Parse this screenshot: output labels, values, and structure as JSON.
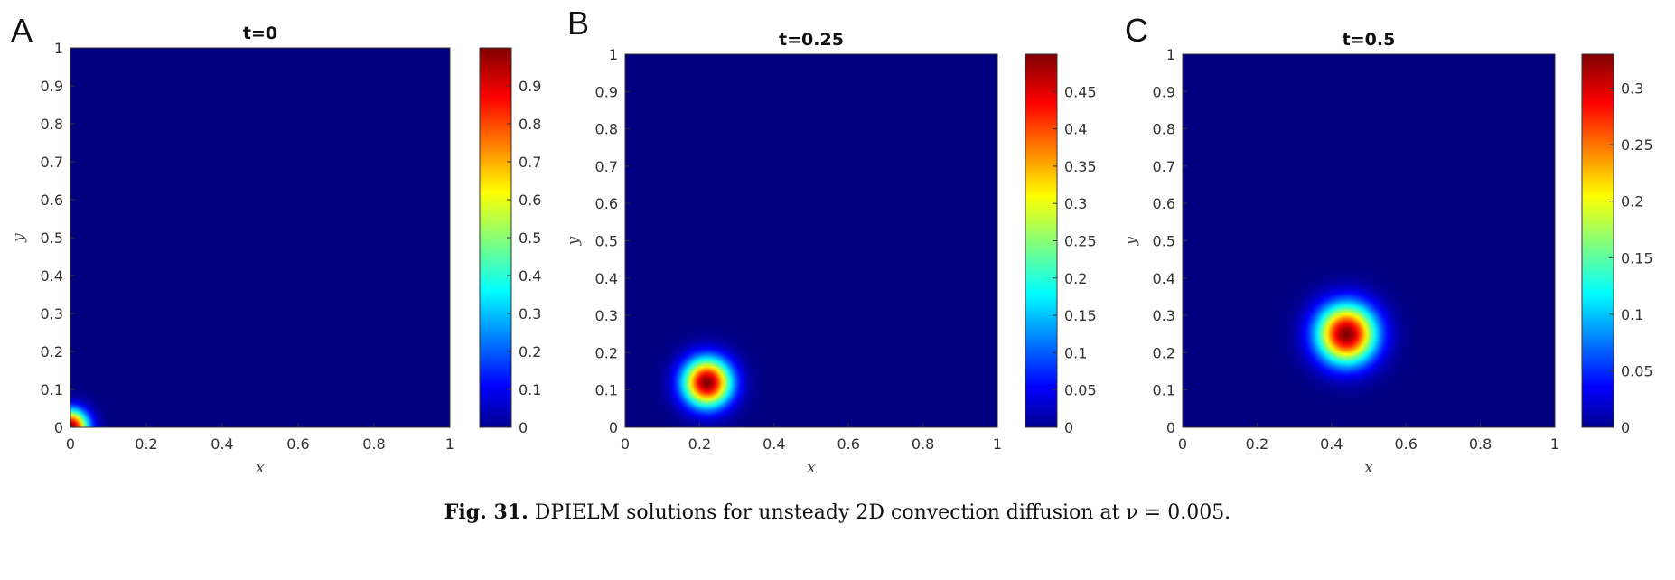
{
  "figure": {
    "caption_label": "Fig. 31.",
    "caption_text": "DPIELM solutions for unsteady 2D convection diffusion at ν = 0.005."
  },
  "chart_data": [
    {
      "type": "heatmap",
      "panel": "A",
      "title": "t=0",
      "xlabel": "x",
      "ylabel": "y",
      "xlim": [
        0,
        1
      ],
      "ylim": [
        0,
        1
      ],
      "xticks": [
        "0",
        "0.2",
        "0.4",
        "0.6",
        "0.8",
        "1"
      ],
      "yticks": [
        "0",
        "0.1",
        "0.2",
        "0.3",
        "0.4",
        "0.5",
        "0.6",
        "0.7",
        "0.8",
        "0.9",
        "1"
      ],
      "colormap": "jet",
      "colorbar_range": [
        0,
        1
      ],
      "colorbar_ticks": [
        "0",
        "0.1",
        "0.2",
        "0.3",
        "0.4",
        "0.5",
        "0.6",
        "0.7",
        "0.8",
        "0.9"
      ],
      "peak": {
        "x": 0.0,
        "y": 0.0,
        "value": 1.0
      },
      "spread": 0.032
    },
    {
      "type": "heatmap",
      "panel": "B",
      "title": "t=0.25",
      "xlabel": "x",
      "ylabel": "y",
      "xlim": [
        0,
        1
      ],
      "ylim": [
        0,
        1
      ],
      "xticks": [
        "0",
        "0.2",
        "0.4",
        "0.6",
        "0.8",
        "1"
      ],
      "yticks": [
        "0",
        "0.1",
        "0.2",
        "0.3",
        "0.4",
        "0.5",
        "0.6",
        "0.7",
        "0.8",
        "0.9",
        "1"
      ],
      "colormap": "jet",
      "colorbar_range": [
        0,
        0.5
      ],
      "colorbar_ticks": [
        "0",
        "0.05",
        "0.1",
        "0.15",
        "0.2",
        "0.25",
        "0.3",
        "0.35",
        "0.4",
        "0.45"
      ],
      "peak": {
        "x": 0.22,
        "y": 0.12,
        "value": 0.5
      },
      "spread": 0.045
    },
    {
      "type": "heatmap",
      "panel": "C",
      "title": "t=0.5",
      "xlabel": "x",
      "ylabel": "y",
      "xlim": [
        0,
        1
      ],
      "ylim": [
        0,
        1
      ],
      "xticks": [
        "0",
        "0.2",
        "0.4",
        "0.6",
        "0.8",
        "1"
      ],
      "yticks": [
        "0",
        "0.1",
        "0.2",
        "0.3",
        "0.4",
        "0.5",
        "0.6",
        "0.7",
        "0.8",
        "0.9",
        "1"
      ],
      "colormap": "jet",
      "colorbar_range": [
        0,
        0.33
      ],
      "colorbar_ticks": [
        "0",
        "0.05",
        "0.1",
        "0.15",
        "0.2",
        "0.25",
        "0.3"
      ],
      "peak": {
        "x": 0.44,
        "y": 0.25,
        "value": 0.33
      },
      "spread": 0.055
    }
  ]
}
